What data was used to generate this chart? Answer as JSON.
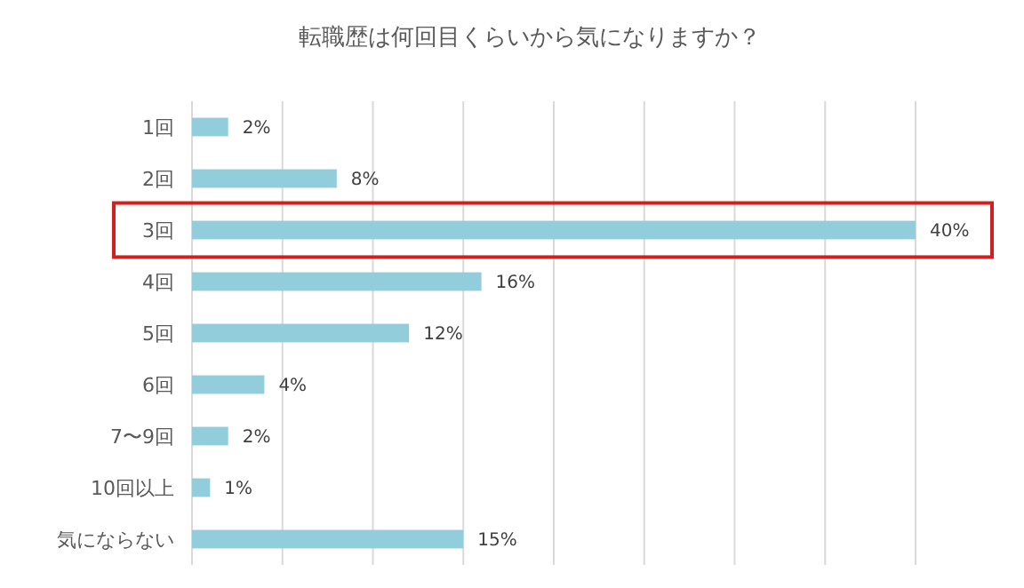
{
  "chart_data": {
    "type": "bar",
    "orientation": "horizontal",
    "title": "転職歴は何回目くらいから気になりますか？",
    "categories": [
      "1回",
      "2回",
      "3回",
      "4回",
      "5回",
      "6回",
      "7〜9回",
      "10回以上",
      "気にならない"
    ],
    "values": [
      2,
      8,
      40,
      16,
      12,
      4,
      2,
      1,
      15
    ],
    "value_labels": [
      "2%",
      "8%",
      "40%",
      "16%",
      "12%",
      "4%",
      "2%",
      "1%",
      "15%"
    ],
    "color": "#92cddc",
    "xlim": [
      0,
      40
    ],
    "xticks": [
      {
        "value": 0,
        "label": null
      },
      {
        "value": 5,
        "label": null
      },
      {
        "value": 10,
        "label": null
      },
      {
        "value": 15,
        "label": null
      },
      {
        "value": 20,
        "label": null
      },
      {
        "value": 25,
        "label": null
      },
      {
        "value": 30,
        "label": null
      },
      {
        "value": 35,
        "label": null
      },
      {
        "value": 40,
        "label": null
      }
    ],
    "tick_labels": "y",
    "grid": "x"
  }
}
